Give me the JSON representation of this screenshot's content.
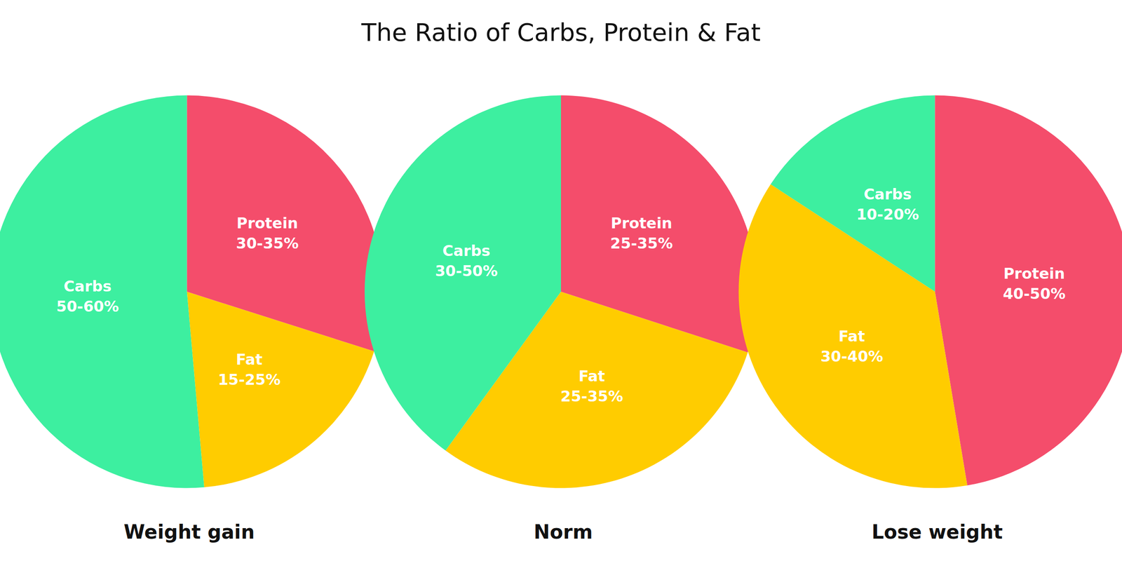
{
  "title": "The Ratio of Carbs, Protein & Fat",
  "chart_data": [
    {
      "type": "pie",
      "subtitle": "Weight gain",
      "categories": [
        "Carbs\n50-60%",
        "Fat\n15-25%",
        "Protein\n30-35%"
      ],
      "values": [
        55,
        20,
        32
      ],
      "colors": [
        "#3DEFA0",
        "#FFCC00",
        "#F44D6B"
      ]
    },
    {
      "type": "pie",
      "subtitle": "Norm",
      "categories": [
        "Carbs\n30-50%",
        "Fat\n25-35%",
        "Protein\n25-35%"
      ],
      "values": [
        40,
        30,
        30
      ],
      "colors": [
        "#3DEFA0",
        "#FFCC00",
        "#F44D6B"
      ]
    },
    {
      "type": "pie",
      "subtitle": "Lose weight",
      "categories": [
        "Carbs\n10-20%",
        "Fat\n30-40%",
        "Protein\n40-50%"
      ],
      "values": [
        15,
        35,
        45
      ],
      "colors": [
        "#3DEFA0",
        "#FFCC00",
        "#F44D6B"
      ]
    }
  ]
}
